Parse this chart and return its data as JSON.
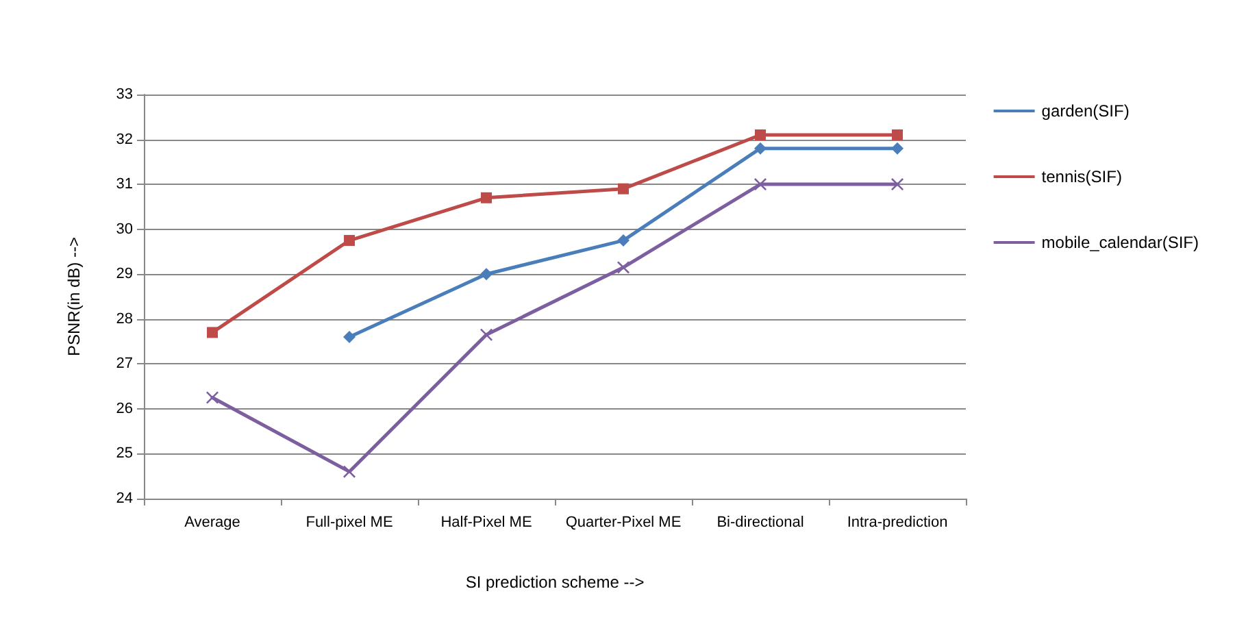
{
  "chart_data": {
    "type": "line",
    "xlabel": "SI prediction scheme -->",
    "ylabel": "PSNR(in dB) -->",
    "categories": [
      "Average",
      "Full-pixel ME",
      "Half-Pixel ME",
      "Quarter-Pixel ME",
      "Bi-directional",
      "Intra-prediction"
    ],
    "series": [
      {
        "name": "garden(SIF)",
        "color": "#4a7ebb",
        "marker": "diamond",
        "values": [
          null,
          27.6,
          29.0,
          29.75,
          31.8,
          31.8
        ]
      },
      {
        "name": "tennis(SIF)",
        "color": "#be4b48",
        "marker": "square",
        "values": [
          27.7,
          29.75,
          30.7,
          30.9,
          32.1,
          32.1
        ]
      },
      {
        "name": "mobile_calendar(SIF)",
        "color": "#7d5fa0",
        "marker": "cross",
        "values": [
          26.25,
          24.6,
          27.65,
          29.15,
          31.0,
          31.0
        ]
      }
    ],
    "ylim": [
      24,
      33
    ],
    "yticks": [
      24,
      25,
      26,
      27,
      28,
      29,
      30,
      31,
      32,
      33
    ],
    "grid": "y",
    "legend": "right"
  }
}
